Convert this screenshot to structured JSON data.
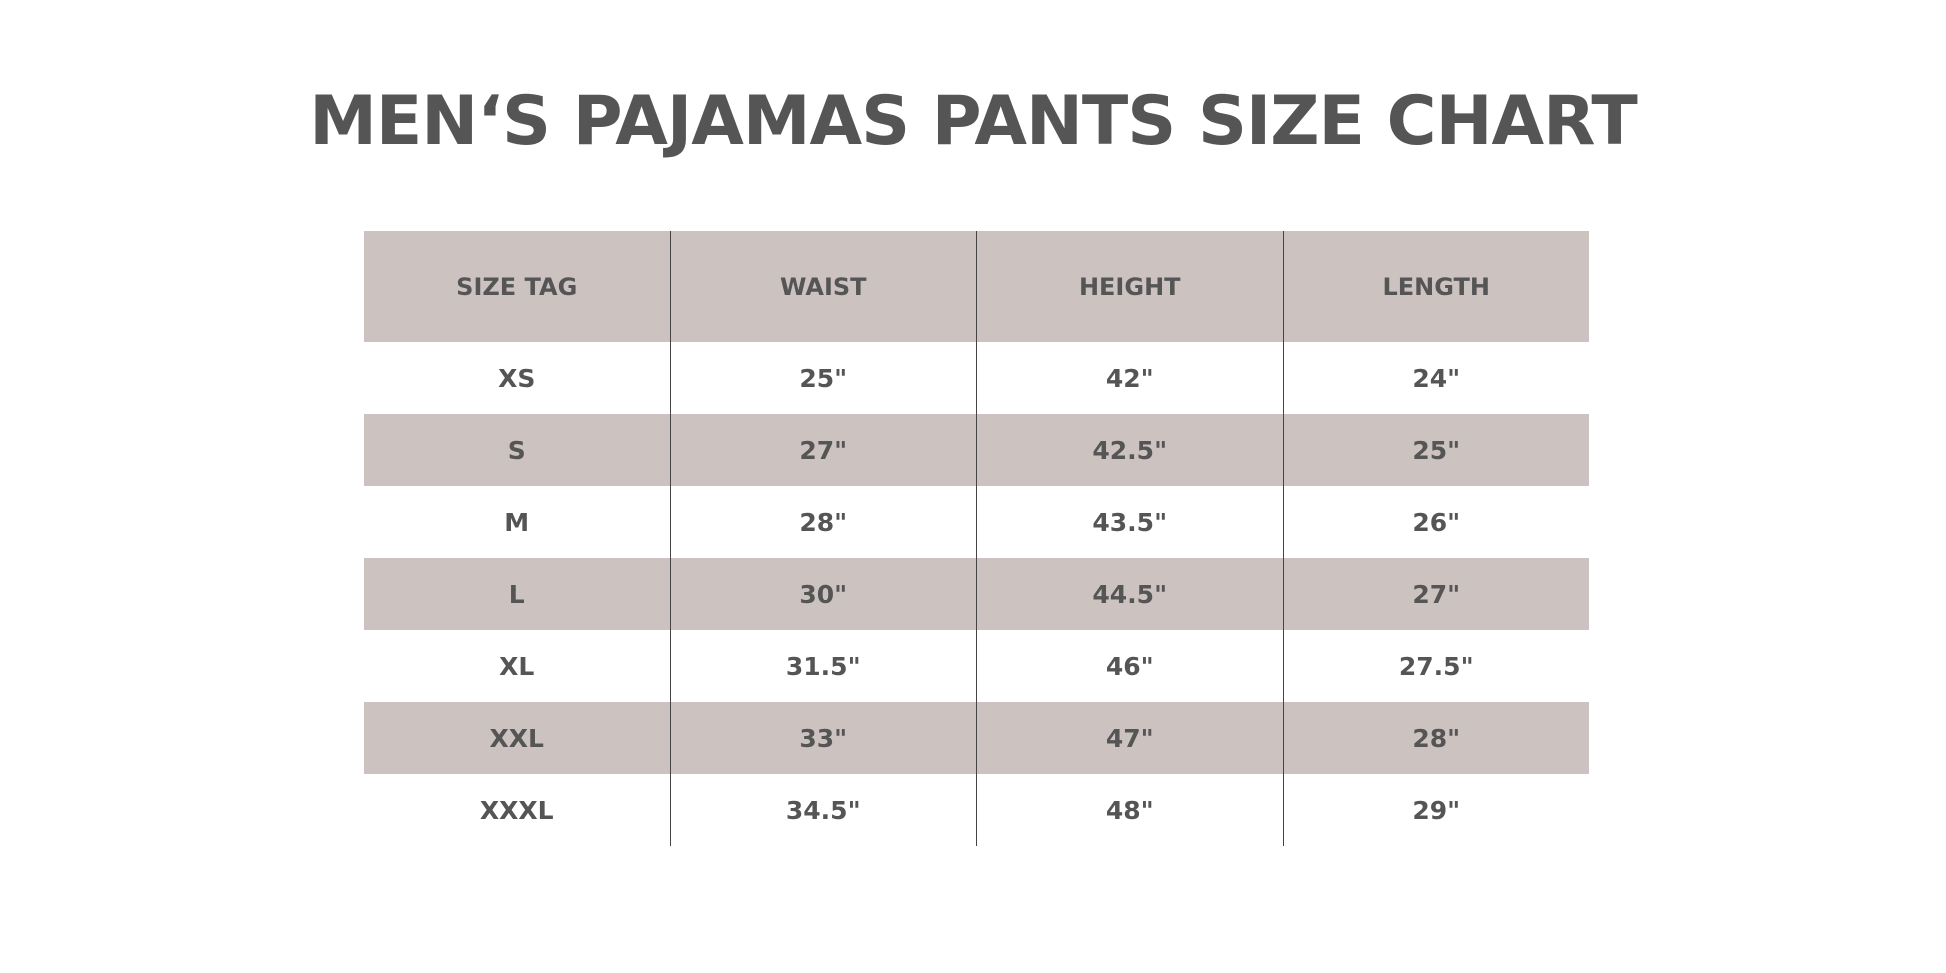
{
  "title": "MEN‘S PAJAMAS PANTS SIZE CHART",
  "colors": {
    "header_bg": "#ccc3c0",
    "text": "#555555",
    "row_alt_bg": "#ccc3c0"
  },
  "table": {
    "headers": [
      "SIZE TAG",
      "WAIST",
      "HEIGHT",
      "LENGTH"
    ],
    "rows": [
      [
        "XS",
        "25\"",
        "42\"",
        "24\""
      ],
      [
        "S",
        "27\"",
        "42.5\"",
        "25\""
      ],
      [
        "M",
        "28\"",
        "43.5\"",
        "26\""
      ],
      [
        "L",
        "30\"",
        "44.5\"",
        "27\""
      ],
      [
        "XL",
        "31.5\"",
        "46\"",
        "27.5\""
      ],
      [
        "XXL",
        "33\"",
        "47\"",
        "28\""
      ],
      [
        "XXXL",
        "34.5\"",
        "48\"",
        "29\""
      ]
    ]
  }
}
